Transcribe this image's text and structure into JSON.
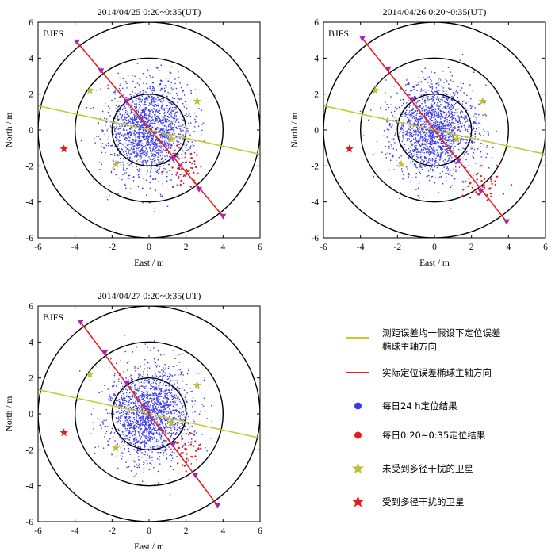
{
  "chart_data": [
    {
      "type": "scatter",
      "title": "2014/04/25  0:20~0:35(UT)",
      "station": "BJFS",
      "xlabel": "East / m",
      "ylabel": "North / m",
      "xlim": [
        -6,
        6
      ],
      "ylim": [
        -6,
        6
      ],
      "xticks": [
        -6,
        -4,
        -2,
        0,
        2,
        4,
        6
      ],
      "yticks": [
        -6,
        -4,
        -2,
        0,
        2,
        4,
        6
      ],
      "circle_radii_m": [
        2,
        4,
        6
      ],
      "dense_cloud": {
        "center": [
          0,
          0
        ],
        "sigma_east": 1.15,
        "sigma_north": 1.35,
        "count": 1800,
        "extent": 5
      },
      "red_points": {
        "center": [
          1.9,
          -2.1
        ],
        "sigma_east": 0.45,
        "sigma_north": 0.6,
        "count": 45
      },
      "assumed_axis_line": {
        "from": [
          -6,
          1.35
        ],
        "to": [
          6,
          -1.35
        ]
      },
      "actual_axis_line": {
        "from": [
          -3.9,
          4.9
        ],
        "to": [
          4.0,
          -4.8
        ]
      },
      "axis_markers": [
        [
          -3.9,
          4.9
        ],
        [
          -2.6,
          3.3
        ],
        [
          -1.2,
          1.6
        ],
        [
          1.3,
          -1.6
        ],
        [
          2.7,
          -3.3
        ],
        [
          4.0,
          -4.8
        ]
      ],
      "unaffected_satellites": [
        [
          -3.2,
          2.2
        ],
        [
          2.6,
          1.6
        ],
        [
          -1.8,
          -1.9
        ],
        [
          1.2,
          -0.5
        ]
      ],
      "affected_satellites": [
        [
          -4.6,
          -1.05
        ]
      ]
    },
    {
      "type": "scatter",
      "title": "2014/04/26  0:20~0:35(UT)",
      "station": "BJFS",
      "xlabel": "East / m",
      "ylabel": "North / m",
      "xlim": [
        -6,
        6
      ],
      "ylim": [
        -6,
        6
      ],
      "xticks": [
        -6,
        -4,
        -2,
        0,
        2,
        4,
        6
      ],
      "yticks": [
        -6,
        -4,
        -2,
        0,
        2,
        4,
        6
      ],
      "circle_radii_m": [
        2,
        4,
        6
      ],
      "dense_cloud": {
        "center": [
          0,
          0
        ],
        "sigma_east": 1.15,
        "sigma_north": 1.3,
        "count": 1800,
        "extent": 5
      },
      "red_points": {
        "center": [
          2.7,
          -3.1
        ],
        "sigma_east": 0.5,
        "sigma_north": 0.45,
        "count": 45
      },
      "assumed_axis_line": {
        "from": [
          -6,
          1.35
        ],
        "to": [
          6,
          -1.35
        ]
      },
      "actual_axis_line": {
        "from": [
          -3.9,
          5.1
        ],
        "to": [
          3.9,
          -5.1
        ]
      },
      "axis_markers": [
        [
          -3.9,
          5.1
        ],
        [
          -2.5,
          3.4
        ],
        [
          -1.2,
          1.7
        ],
        [
          1.3,
          -1.7
        ],
        [
          2.5,
          -3.4
        ],
        [
          3.9,
          -5.1
        ]
      ],
      "unaffected_satellites": [
        [
          -3.2,
          2.2
        ],
        [
          2.6,
          1.6
        ],
        [
          -1.8,
          -1.9
        ],
        [
          1.2,
          -0.5
        ]
      ],
      "affected_satellites": [
        [
          -4.6,
          -1.05
        ]
      ]
    },
    {
      "type": "scatter",
      "title": "2014/04/27  0:20~0:35(UT)",
      "station": "BJFS",
      "xlabel": "East / m",
      "ylabel": "North / m",
      "xlim": [
        -6,
        6
      ],
      "ylim": [
        -6,
        6
      ],
      "xticks": [
        -6,
        -4,
        -2,
        0,
        2,
        4,
        6
      ],
      "yticks": [
        -6,
        -4,
        -2,
        0,
        2,
        4,
        6
      ],
      "circle_radii_m": [
        2,
        4,
        6
      ],
      "dense_cloud": {
        "center": [
          0,
          0
        ],
        "sigma_east": 1.15,
        "sigma_north": 1.35,
        "count": 1800,
        "extent": 5
      },
      "red_points": {
        "center": [
          2.0,
          -2.0
        ],
        "sigma_east": 0.4,
        "sigma_north": 0.55,
        "count": 40
      },
      "assumed_axis_line": {
        "from": [
          -6,
          1.35
        ],
        "to": [
          6,
          -1.35
        ]
      },
      "actual_axis_line": {
        "from": [
          -3.7,
          5.1
        ],
        "to": [
          3.7,
          -5.1
        ]
      },
      "axis_markers": [
        [
          -3.7,
          5.1
        ],
        [
          -2.4,
          3.4
        ],
        [
          -1.2,
          1.7
        ],
        [
          1.3,
          -1.7
        ],
        [
          2.5,
          -3.4
        ],
        [
          3.7,
          -5.1
        ]
      ],
      "unaffected_satellites": [
        [
          -3.2,
          2.2
        ],
        [
          2.6,
          1.6
        ],
        [
          -1.8,
          -1.9
        ],
        [
          1.2,
          -0.5
        ]
      ],
      "affected_satellites": [
        [
          -4.6,
          -1.05
        ]
      ]
    }
  ],
  "legend": [
    {
      "key": "assumed_axis",
      "label_lines": [
        "测距误差均一假设下定位误差",
        "椭球主轴方向"
      ]
    },
    {
      "key": "actual_axis",
      "label_lines": [
        "实际定位误差椭球主轴方向"
      ]
    },
    {
      "key": "daily_results",
      "label_lines": [
        "每日24 h定位结果"
      ]
    },
    {
      "key": "window_results",
      "label_lines": [
        "每日0:20~0:35定位结果"
      ]
    },
    {
      "key": "unaffected_sat",
      "label_lines": [
        "未受到多径干扰的卫星"
      ]
    },
    {
      "key": "affected_sat",
      "label_lines": [
        "受到多径干扰的卫星"
      ]
    }
  ],
  "colors": {
    "assumed_line": "#c8c832",
    "actual_line": "#e8201e",
    "blue_points": "#3a3ae8",
    "red_points": "#e81e1e",
    "triangle_markers": "#b022b0",
    "unaffected_star": "#c0c030",
    "affected_star": "#e81818",
    "circles": "#000000"
  }
}
